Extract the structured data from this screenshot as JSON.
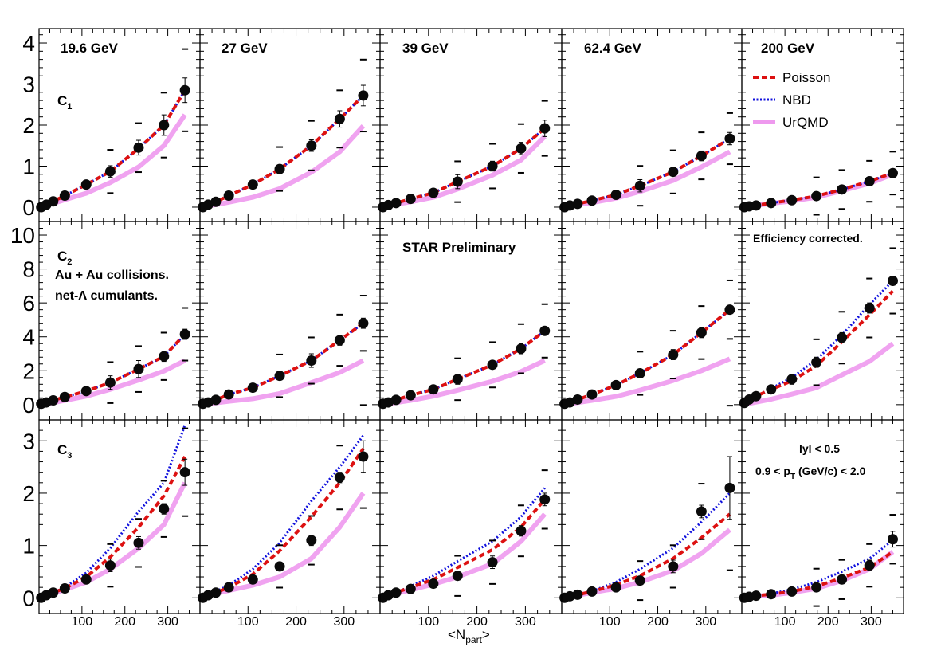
{
  "figure": {
    "xlabel_main": "<N",
    "xlabel_sub": "part",
    "xlabel_end": ">",
    "status_text": "STAR Preliminary",
    "note_text": "Efficiency corrected.",
    "system_line1": "Au + Au collisions.",
    "system_line2": "net-Λ cumulants.",
    "cut_y": "lyl < 0.5",
    "cut_pt_main": "0.9 < p",
    "cut_pt_sub": "T",
    "cut_pt_end": " (GeV/c) < 2.0"
  },
  "legend": {
    "entries": [
      {
        "key": "poisson",
        "label": "Poisson",
        "color": "#dd1111",
        "style": "dashed"
      },
      {
        "key": "nbd",
        "label": "NBD",
        "color": "#1111dd",
        "style": "dotted"
      },
      {
        "key": "urqmd",
        "label": "UrQMD",
        "color": "#ee99ee",
        "style": "band"
      }
    ]
  },
  "chart_data": {
    "type": "scatter",
    "xlim": [
      0,
      375
    ],
    "x_ticks": [
      100,
      200,
      300
    ],
    "x_tick_labels": [
      "100",
      "200",
      "300"
    ],
    "energies": [
      "19.6 GeV",
      "27 GeV",
      "39 GeV",
      "62.4 GeV",
      "200 GeV"
    ],
    "npart": [
      [
        5,
        17,
        33,
        60,
        110,
        166,
        232,
        291,
        340
      ],
      [
        6,
        17,
        33,
        60,
        110,
        166,
        232,
        291,
        340
      ],
      [
        6,
        17,
        33,
        63,
        110,
        160,
        232,
        291,
        340
      ],
      [
        6,
        17,
        33,
        63,
        113,
        163,
        232,
        291,
        350
      ],
      [
        6,
        17,
        33,
        68,
        116,
        173,
        232,
        296,
        350
      ]
    ],
    "rows": [
      {
        "name": "C",
        "sub": "1",
        "ylim": [
          -0.35,
          4.35
        ],
        "y_ticks": [
          0,
          1,
          2,
          3,
          4
        ],
        "y_tick_labels": [
          "0",
          "1",
          "2",
          "3",
          "4"
        ],
        "series": [
          {
            "points": [
              0.0,
              0.06,
              0.14,
              0.28,
              0.55,
              0.87,
              1.45,
              2.0,
              2.85
            ],
            "errors": [
              0.02,
              0.03,
              0.04,
              0.06,
              0.1,
              0.14,
              0.18,
              0.25,
              0.3
            ],
            "poisson": [
              0.0,
              0.06,
              0.14,
              0.28,
              0.55,
              0.87,
              1.43,
              2.0,
              2.85
            ],
            "nbd": [
              0.0,
              0.06,
              0.14,
              0.28,
              0.55,
              0.87,
              1.43,
              2.0,
              2.85
            ],
            "urqmd": [
              0.0,
              0.04,
              0.09,
              0.18,
              0.34,
              0.6,
              0.98,
              1.5,
              2.25
            ]
          },
          {
            "points": [
              0.0,
              0.06,
              0.13,
              0.28,
              0.55,
              0.93,
              1.5,
              2.15,
              2.72
            ],
            "errors": [
              0.02,
              0.03,
              0.04,
              0.05,
              0.08,
              0.1,
              0.14,
              0.2,
              0.25
            ],
            "poisson": [
              0.0,
              0.06,
              0.13,
              0.28,
              0.55,
              0.93,
              1.5,
              2.15,
              2.72
            ],
            "nbd": [
              0.0,
              0.06,
              0.13,
              0.28,
              0.55,
              0.93,
              1.5,
              2.15,
              2.72
            ],
            "urqmd": [
              0.0,
              0.03,
              0.06,
              0.12,
              0.24,
              0.45,
              0.85,
              1.35,
              1.98
            ]
          },
          {
            "points": [
              0.0,
              0.05,
              0.1,
              0.2,
              0.35,
              0.62,
              1.0,
              1.43,
              1.92
            ],
            "errors": [
              0.02,
              0.03,
              0.04,
              0.05,
              0.07,
              0.17,
              0.12,
              0.15,
              0.2
            ],
            "poisson": [
              0.0,
              0.05,
              0.1,
              0.2,
              0.35,
              0.62,
              1.0,
              1.43,
              1.92
            ],
            "nbd": [
              0.0,
              0.05,
              0.1,
              0.2,
              0.35,
              0.62,
              1.0,
              1.43,
              1.92
            ],
            "urqmd": [
              0.0,
              0.03,
              0.07,
              0.13,
              0.24,
              0.44,
              0.78,
              1.15,
              1.72
            ]
          },
          {
            "points": [
              0.0,
              0.04,
              0.08,
              0.16,
              0.3,
              0.52,
              0.86,
              1.25,
              1.67
            ],
            "errors": [
              0.02,
              0.02,
              0.03,
              0.05,
              0.06,
              0.15,
              0.09,
              0.12,
              0.15
            ],
            "poisson": [
              0.0,
              0.04,
              0.08,
              0.16,
              0.3,
              0.52,
              0.86,
              1.25,
              1.67
            ],
            "nbd": [
              0.0,
              0.04,
              0.08,
              0.16,
              0.3,
              0.52,
              0.86,
              1.25,
              1.67
            ],
            "urqmd": [
              0.0,
              0.03,
              0.06,
              0.11,
              0.22,
              0.38,
              0.65,
              0.98,
              1.35
            ]
          },
          {
            "points": [
              0.0,
              0.02,
              0.04,
              0.1,
              0.17,
              0.27,
              0.43,
              0.63,
              0.83
            ],
            "errors": [
              0.01,
              0.02,
              0.02,
              0.03,
              0.04,
              0.05,
              0.1,
              0.1,
              0.1
            ],
            "poisson": [
              0.0,
              0.02,
              0.04,
              0.1,
              0.17,
              0.27,
              0.43,
              0.63,
              0.83
            ],
            "nbd": [
              0.0,
              0.02,
              0.04,
              0.1,
              0.17,
              0.27,
              0.43,
              0.63,
              0.83
            ],
            "urqmd": [
              0.0,
              0.02,
              0.04,
              0.09,
              0.15,
              0.24,
              0.4,
              0.58,
              0.8
            ]
          }
        ]
      },
      {
        "name": "C",
        "sub": "2",
        "ylim": [
          -0.9,
          10.8
        ],
        "y_ticks": [
          0,
          2,
          4,
          6,
          8,
          10
        ],
        "y_tick_labels": [
          "0",
          "2",
          "4",
          "6",
          "8",
          "10"
        ],
        "series": [
          {
            "points": [
              0.05,
              0.13,
              0.25,
              0.45,
              0.8,
              1.3,
              2.1,
              2.85,
              4.15
            ],
            "errors": [
              0.03,
              0.04,
              0.06,
              0.08,
              0.12,
              0.4,
              0.5,
              0.3,
              0.3
            ],
            "poisson": [
              0.05,
              0.13,
              0.25,
              0.45,
              0.8,
              1.3,
              2.1,
              2.85,
              4.15
            ],
            "nbd": [
              0.05,
              0.13,
              0.25,
              0.45,
              0.8,
              1.3,
              2.1,
              2.85,
              4.15
            ],
            "urqmd": [
              0.0,
              0.05,
              0.12,
              0.25,
              0.5,
              0.9,
              1.45,
              1.98,
              2.6
            ]
          },
          {
            "points": [
              0.05,
              0.13,
              0.28,
              0.6,
              1.0,
              1.7,
              2.6,
              3.8,
              4.8
            ],
            "errors": [
              0.03,
              0.04,
              0.06,
              0.08,
              0.1,
              0.15,
              0.4,
              0.3,
              0.3
            ],
            "poisson": [
              0.05,
              0.13,
              0.28,
              0.6,
              1.0,
              1.7,
              2.6,
              3.8,
              4.8
            ],
            "nbd": [
              0.05,
              0.13,
              0.28,
              0.6,
              1.0,
              1.7,
              2.6,
              3.8,
              4.8
            ],
            "urqmd": [
              0.0,
              0.05,
              0.1,
              0.2,
              0.35,
              0.65,
              1.3,
              1.9,
              2.6
            ]
          },
          {
            "points": [
              0.05,
              0.13,
              0.28,
              0.55,
              0.9,
              1.5,
              2.35,
              3.3,
              4.35
            ],
            "errors": [
              0.03,
              0.04,
              0.06,
              0.08,
              0.1,
              0.3,
              0.2,
              0.3,
              0.2
            ],
            "poisson": [
              0.05,
              0.13,
              0.28,
              0.55,
              0.9,
              1.5,
              2.35,
              3.3,
              4.35
            ],
            "nbd": [
              0.05,
              0.13,
              0.28,
              0.55,
              0.9,
              1.5,
              2.35,
              3.3,
              4.35
            ],
            "urqmd": [
              0.0,
              0.05,
              0.12,
              0.25,
              0.5,
              0.85,
              1.38,
              1.95,
              2.6
            ]
          },
          {
            "points": [
              0.05,
              0.13,
              0.3,
              0.6,
              1.15,
              1.85,
              2.95,
              4.25,
              5.6
            ],
            "errors": [
              0.03,
              0.04,
              0.06,
              0.08,
              0.2,
              0.2,
              0.3,
              0.3,
              0.2
            ],
            "poisson": [
              0.05,
              0.13,
              0.3,
              0.6,
              1.15,
              1.85,
              2.95,
              4.25,
              5.6
            ],
            "nbd": [
              0.05,
              0.13,
              0.3,
              0.6,
              1.15,
              1.85,
              2.95,
              4.25,
              5.6
            ],
            "urqmd": [
              0.0,
              0.05,
              0.12,
              0.25,
              0.48,
              0.85,
              1.42,
              2.0,
              2.7
            ]
          },
          {
            "points": [
              0.1,
              0.3,
              0.5,
              0.9,
              1.5,
              2.5,
              3.95,
              5.7,
              7.3
            ],
            "errors": [
              0.03,
              0.05,
              0.08,
              0.1,
              0.3,
              0.3,
              0.3,
              0.3,
              0.2
            ],
            "poisson": [
              0.1,
              0.3,
              0.5,
              0.9,
              1.4,
              2.3,
              3.7,
              5.3,
              6.7
            ],
            "nbd": [
              0.1,
              0.3,
              0.5,
              0.95,
              1.6,
              2.65,
              4.1,
              5.9,
              7.3
            ],
            "urqmd": [
              0.0,
              0.07,
              0.15,
              0.32,
              0.62,
              1.0,
              1.75,
              2.55,
              3.6
            ]
          }
        ]
      },
      {
        "name": "C",
        "sub": "3",
        "ylim": [
          -0.3,
          3.4
        ],
        "y_ticks": [
          0,
          1,
          2,
          3
        ],
        "y_tick_labels": [
          "0",
          "1",
          "2",
          "3"
        ],
        "series": [
          {
            "points": [
              0.0,
              0.05,
              0.1,
              0.18,
              0.35,
              0.62,
              1.05,
              1.7,
              2.4
            ],
            "errors": [
              0.02,
              0.03,
              0.04,
              0.05,
              0.08,
              0.12,
              0.12,
              0.1,
              0.25
            ],
            "poisson": [
              0.0,
              0.05,
              0.1,
              0.18,
              0.4,
              0.78,
              1.35,
              1.95,
              2.7
            ],
            "nbd": [
              0.0,
              0.05,
              0.1,
              0.2,
              0.48,
              0.95,
              1.65,
              2.2,
              3.3
            ],
            "urqmd": [
              0.0,
              0.04,
              0.08,
              0.16,
              0.3,
              0.55,
              0.95,
              1.4,
              2.2
            ]
          },
          {
            "points": [
              0.0,
              0.05,
              0.1,
              0.2,
              0.35,
              0.6,
              1.1,
              2.3,
              2.7
            ],
            "errors": [
              0.02,
              0.03,
              0.04,
              0.05,
              0.06,
              0.08,
              0.1,
              0.1,
              0.3
            ],
            "poisson": [
              0.0,
              0.05,
              0.1,
              0.2,
              0.45,
              0.9,
              1.55,
              2.2,
              2.85
            ],
            "nbd": [
              0.0,
              0.05,
              0.12,
              0.24,
              0.55,
              1.05,
              1.85,
              2.5,
              3.1
            ],
            "urqmd": [
              0.0,
              0.04,
              0.08,
              0.14,
              0.24,
              0.4,
              0.75,
              1.35,
              2.0
            ]
          },
          {
            "points": [
              0.0,
              0.05,
              0.1,
              0.17,
              0.27,
              0.42,
              0.68,
              1.28,
              1.88
            ],
            "errors": [
              0.02,
              0.03,
              0.04,
              0.05,
              0.06,
              0.08,
              0.12,
              0.1,
              0.12
            ],
            "poisson": [
              0.0,
              0.05,
              0.1,
              0.2,
              0.35,
              0.58,
              0.92,
              1.35,
              1.88
            ],
            "nbd": [
              0.0,
              0.05,
              0.1,
              0.22,
              0.42,
              0.7,
              1.08,
              1.55,
              2.1
            ],
            "urqmd": [
              0.0,
              0.04,
              0.08,
              0.15,
              0.26,
              0.4,
              0.65,
              1.08,
              1.6
            ]
          },
          {
            "points": [
              0.0,
              0.03,
              0.06,
              0.12,
              0.2,
              0.33,
              0.6,
              1.65,
              2.1
            ],
            "errors": [
              0.02,
              0.03,
              0.04,
              0.04,
              0.05,
              0.06,
              0.12,
              0.12,
              0.6
            ],
            "poisson": [
              0.0,
              0.03,
              0.06,
              0.12,
              0.25,
              0.42,
              0.75,
              1.15,
              1.6
            ],
            "nbd": [
              0.0,
              0.03,
              0.06,
              0.13,
              0.3,
              0.55,
              0.95,
              1.45,
              2.0
            ],
            "urqmd": [
              0.0,
              0.02,
              0.05,
              0.1,
              0.18,
              0.3,
              0.52,
              0.85,
              1.3
            ]
          },
          {
            "points": [
              0.0,
              0.02,
              0.04,
              0.07,
              0.12,
              0.2,
              0.35,
              0.62,
              1.12
            ],
            "errors": [
              0.01,
              0.02,
              0.02,
              0.03,
              0.04,
              0.05,
              0.08,
              0.1,
              0.15
            ],
            "poisson": [
              0.0,
              0.02,
              0.04,
              0.07,
              0.12,
              0.22,
              0.38,
              0.58,
              0.88
            ],
            "nbd": [
              0.0,
              0.02,
              0.04,
              0.08,
              0.16,
              0.3,
              0.5,
              0.75,
              1.1
            ],
            "urqmd": [
              0.0,
              0.02,
              0.03,
              0.05,
              0.1,
              0.18,
              0.33,
              0.55,
              0.88
            ]
          }
        ]
      }
    ]
  }
}
